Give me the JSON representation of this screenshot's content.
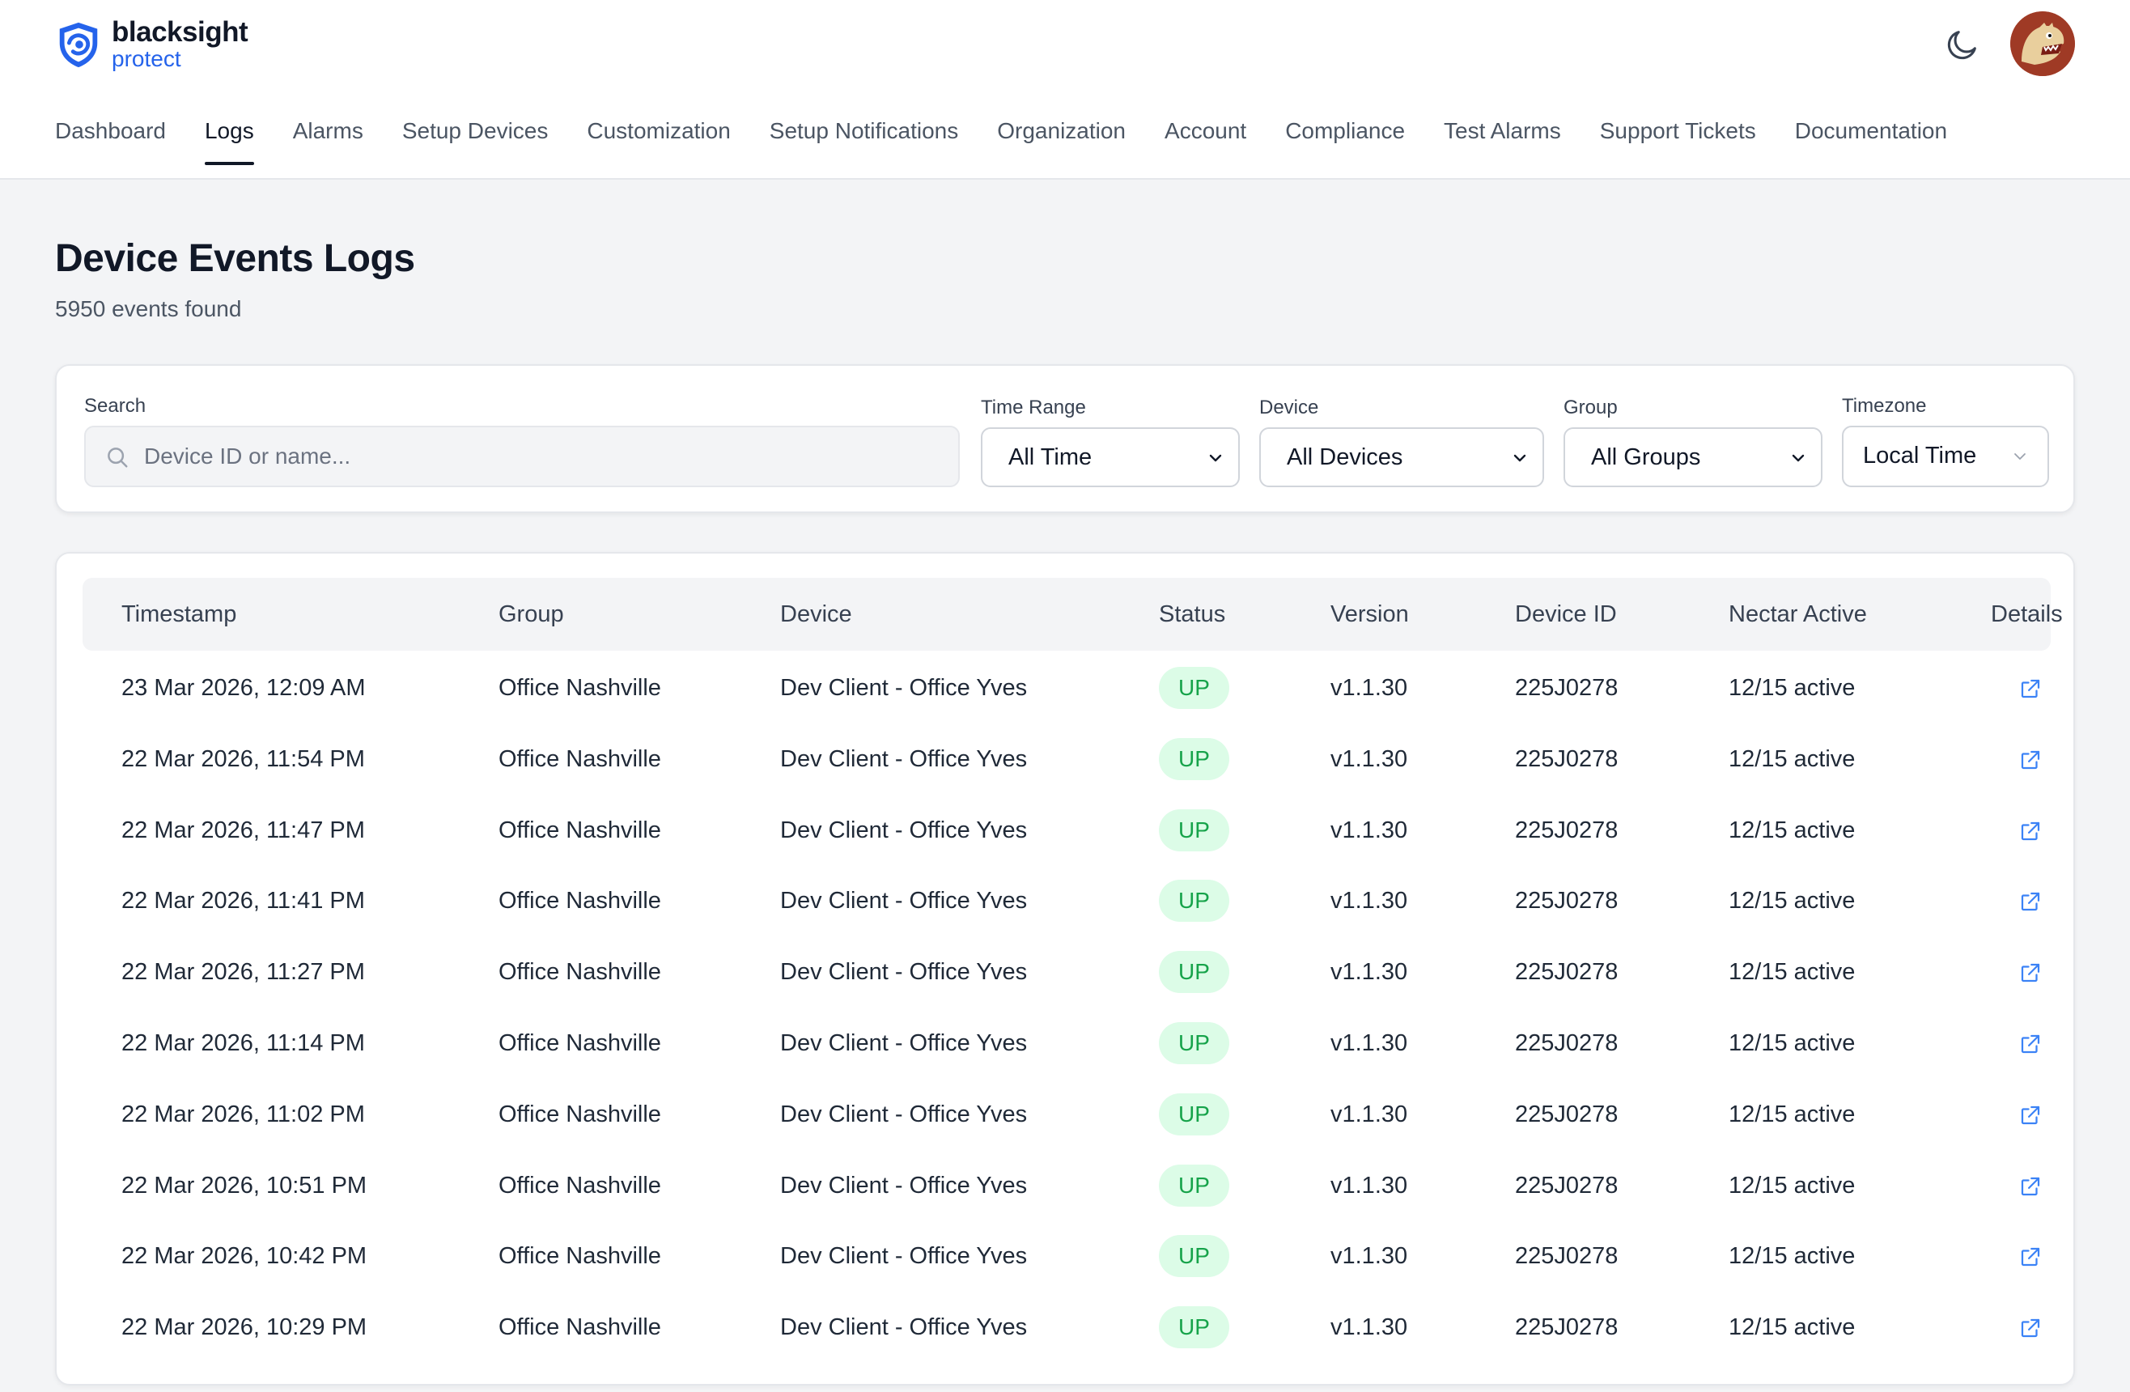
{
  "brand": {
    "name": "blacksight",
    "sub": "protect",
    "accent": "#2563eb"
  },
  "header": {
    "theme_toggle_icon": "moon-icon",
    "avatar_icon": "dinosaur-avatar"
  },
  "nav": [
    {
      "label": "Dashboard",
      "active": false
    },
    {
      "label": "Logs",
      "active": true
    },
    {
      "label": "Alarms",
      "active": false
    },
    {
      "label": "Setup Devices",
      "active": false
    },
    {
      "label": "Customization",
      "active": false
    },
    {
      "label": "Setup Notifications",
      "active": false
    },
    {
      "label": "Organization",
      "active": false
    },
    {
      "label": "Account",
      "active": false
    },
    {
      "label": "Compliance",
      "active": false
    },
    {
      "label": "Test Alarms",
      "active": false
    },
    {
      "label": "Support Tickets",
      "active": false
    },
    {
      "label": "Documentation",
      "active": false
    }
  ],
  "page": {
    "title": "Device Events Logs",
    "subtitle": "5950 events found"
  },
  "filters": {
    "search": {
      "label": "Search",
      "placeholder": "Device ID or name...",
      "value": ""
    },
    "time_range": {
      "label": "Time Range",
      "value": "All Time"
    },
    "device": {
      "label": "Device",
      "value": "All Devices"
    },
    "group": {
      "label": "Group",
      "value": "All Groups"
    },
    "timezone": {
      "label": "Timezone",
      "value": "Local Time"
    }
  },
  "table": {
    "columns": [
      "Timestamp",
      "Group",
      "Device",
      "Status",
      "Version",
      "Device ID",
      "Nectar Active",
      "Details"
    ],
    "rows": [
      {
        "timestamp": "23 Mar 2026, 12:09 AM",
        "group": "Office Nashville",
        "device": "Dev Client - Office Yves",
        "status": "UP",
        "version": "v1.1.30",
        "device_id": "225J0278",
        "nectar": "12/15 active"
      },
      {
        "timestamp": "22 Mar 2026, 11:54 PM",
        "group": "Office Nashville",
        "device": "Dev Client - Office Yves",
        "status": "UP",
        "version": "v1.1.30",
        "device_id": "225J0278",
        "nectar": "12/15 active"
      },
      {
        "timestamp": "22 Mar 2026, 11:47 PM",
        "group": "Office Nashville",
        "device": "Dev Client - Office Yves",
        "status": "UP",
        "version": "v1.1.30",
        "device_id": "225J0278",
        "nectar": "12/15 active"
      },
      {
        "timestamp": "22 Mar 2026, 11:41 PM",
        "group": "Office Nashville",
        "device": "Dev Client - Office Yves",
        "status": "UP",
        "version": "v1.1.30",
        "device_id": "225J0278",
        "nectar": "12/15 active"
      },
      {
        "timestamp": "22 Mar 2026, 11:27 PM",
        "group": "Office Nashville",
        "device": "Dev Client - Office Yves",
        "status": "UP",
        "version": "v1.1.30",
        "device_id": "225J0278",
        "nectar": "12/15 active"
      },
      {
        "timestamp": "22 Mar 2026, 11:14 PM",
        "group": "Office Nashville",
        "device": "Dev Client - Office Yves",
        "status": "UP",
        "version": "v1.1.30",
        "device_id": "225J0278",
        "nectar": "12/15 active"
      },
      {
        "timestamp": "22 Mar 2026, 11:02 PM",
        "group": "Office Nashville",
        "device": "Dev Client - Office Yves",
        "status": "UP",
        "version": "v1.1.30",
        "device_id": "225J0278",
        "nectar": "12/15 active"
      },
      {
        "timestamp": "22 Mar 2026, 10:51 PM",
        "group": "Office Nashville",
        "device": "Dev Client - Office Yves",
        "status": "UP",
        "version": "v1.1.30",
        "device_id": "225J0278",
        "nectar": "12/15 active"
      },
      {
        "timestamp": "22 Mar 2026, 10:42 PM",
        "group": "Office Nashville",
        "device": "Dev Client - Office Yves",
        "status": "UP",
        "version": "v1.1.30",
        "device_id": "225J0278",
        "nectar": "12/15 active"
      },
      {
        "timestamp": "22 Mar 2026, 10:29 PM",
        "group": "Office Nashville",
        "device": "Dev Client - Office Yves",
        "status": "UP",
        "version": "v1.1.30",
        "device_id": "225J0278",
        "nectar": "12/15 active"
      }
    ],
    "status_colors": {
      "UP": {
        "bg": "#dcfce7",
        "fg": "#16a34a"
      }
    },
    "details_icon": "external-link-icon"
  }
}
